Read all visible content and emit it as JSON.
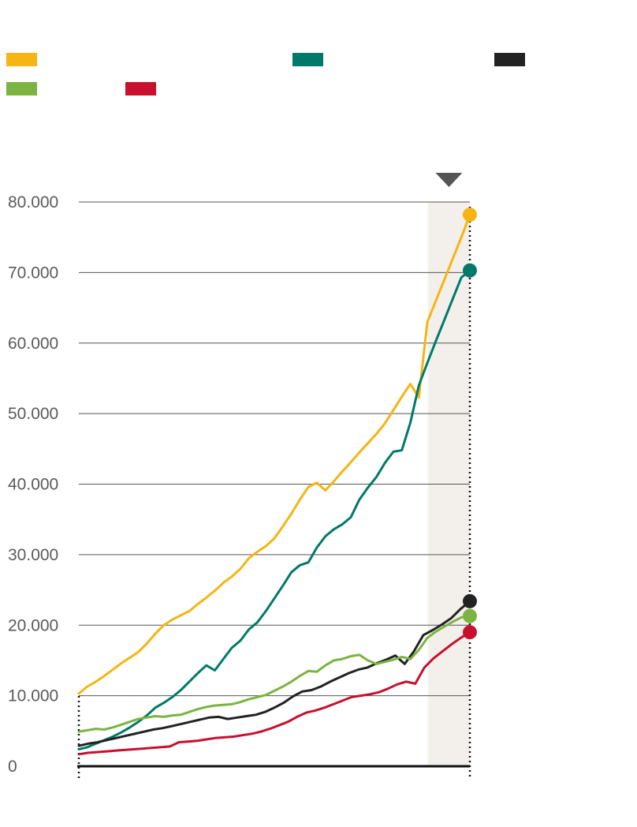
{
  "chart_data": {
    "type": "line",
    "title": "",
    "xlabel": "",
    "ylabel": "",
    "ylim": [
      0,
      80000
    ],
    "yticks": [
      0,
      10000,
      20000,
      30000,
      40000,
      50000,
      60000,
      70000,
      80000
    ],
    "ytick_labels": [
      "0",
      "10.000",
      "20.000",
      "30.000",
      "40.000",
      "50.000",
      "60.000",
      "70.000",
      "80.000"
    ],
    "x_range": [
      0,
      56
    ],
    "highlight_range": [
      50,
      56
    ],
    "highlight_marker": "down-triangle-above-highlight",
    "grid": true,
    "legend_labels_visible": false,
    "series": [
      {
        "name": "",
        "color": "#F5B512",
        "legend_row": 0,
        "legend_col": 0,
        "values": [
          10300,
          11300,
          12000,
          12800,
          13700,
          14600,
          15400,
          16200,
          17400,
          18800,
          20000,
          20800,
          21400,
          22000,
          23000,
          23900,
          24900,
          26000,
          26900,
          28000,
          29500,
          30400,
          31200,
          32300,
          34000,
          35800,
          37800,
          39600,
          40200,
          39100,
          40400,
          41800,
          43100,
          44500,
          45800,
          47100,
          48600,
          50500,
          52400,
          54200,
          52300,
          63000,
          66000,
          69000,
          72000,
          75000,
          78200
        ]
      },
      {
        "name": "",
        "color": "#00796B",
        "legend_row": 0,
        "legend_col": 1,
        "values": [
          2400,
          2700,
          3200,
          3700,
          4200,
          4800,
          5500,
          6300,
          7200,
          8300,
          9000,
          9800,
          10800,
          12000,
          13200,
          14300,
          13600,
          15200,
          16800,
          17800,
          19400,
          20400,
          22000,
          23800,
          25600,
          27500,
          28500,
          28900,
          31000,
          32600,
          33600,
          34300,
          35300,
          37800,
          39500,
          41000,
          43000,
          44600,
          44800,
          48700,
          54000,
          57200,
          60300,
          63300,
          66300,
          69300,
          70300
        ]
      },
      {
        "name": "",
        "color": "#222222",
        "legend_row": 0,
        "legend_col": 2,
        "values": [
          2900,
          3200,
          3400,
          3700,
          4000,
          4300,
          4600,
          4900,
          5200,
          5400,
          5700,
          6000,
          6300,
          6600,
          6900,
          7000,
          6700,
          6900,
          7100,
          7300,
          7700,
          8300,
          9000,
          9900,
          10600,
          10800,
          11300,
          12000,
          12600,
          13200,
          13700,
          14000,
          14600,
          15100,
          15700,
          14500,
          16300,
          18600,
          19300,
          20100,
          21000,
          22300,
          23400
        ]
      },
      {
        "name": "",
        "color": "#7CB342",
        "legend_row": 1,
        "legend_col": 0,
        "values": [
          4900,
          5100,
          5300,
          5200,
          5500,
          5900,
          6300,
          6700,
          6900,
          7100,
          7000,
          7200,
          7300,
          7700,
          8100,
          8400,
          8600,
          8700,
          8800,
          9100,
          9500,
          9800,
          10100,
          10700,
          11300,
          12000,
          12800,
          13500,
          13400,
          14300,
          15000,
          15200,
          15600,
          15800,
          15000,
          14500,
          14800,
          15100,
          15500,
          15200,
          16500,
          18200,
          19100,
          19800,
          20500,
          21100,
          21300
        ]
      },
      {
        "name": "",
        "color": "#C8102E",
        "legend_row": 1,
        "legend_col": 1,
        "values": [
          1700,
          1900,
          2000,
          2100,
          2200,
          2300,
          2400,
          2500,
          2600,
          2700,
          2800,
          3400,
          3500,
          3600,
          3800,
          4000,
          4100,
          4200,
          4400,
          4600,
          4900,
          5300,
          5800,
          6300,
          7000,
          7600,
          7900,
          8300,
          8800,
          9300,
          9800,
          10000,
          10200,
          10500,
          11000,
          11600,
          12000,
          11700,
          14000,
          15300,
          16300,
          17300,
          18200,
          19000
        ]
      }
    ]
  }
}
